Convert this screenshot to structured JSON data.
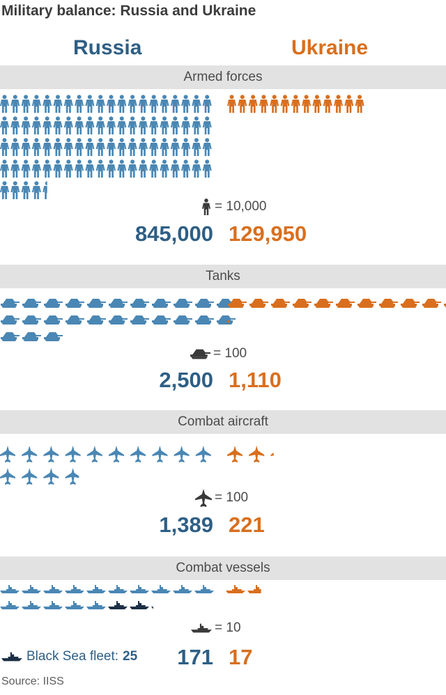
{
  "title": "Military balance: Russia and Ukraine",
  "countries": {
    "russia": "Russia",
    "ukraine": "Ukraine"
  },
  "colors": {
    "russia": "#4a87b4",
    "russia_dark": "#2e5f85",
    "black_sea": "#1d2f45",
    "ukraine": "#d96f1e",
    "legend_icon": "#3a3a3a"
  },
  "chart_data": [
    {
      "type": "pictogram",
      "title": "Armed forces",
      "icon": "soldier-icon",
      "unit_label": "= 10,000",
      "units_per_icon": 10000,
      "series": [
        {
          "name": "Russia",
          "icons": 84.5,
          "value_label": "845,000"
        },
        {
          "name": "Ukraine",
          "icons": 13,
          "value_label": "129,950"
        }
      ]
    },
    {
      "type": "pictogram",
      "title": "Tanks",
      "icon": "tank-icon",
      "unit_label": "= 100",
      "units_per_icon": 100,
      "series": [
        {
          "name": "Russia",
          "icons": 25,
          "value_label": "2,500"
        },
        {
          "name": "Ukraine",
          "icons": 11.1,
          "value_label": "1,110"
        }
      ]
    },
    {
      "type": "pictogram",
      "title": "Combat aircraft",
      "icon": "jet-icon",
      "unit_label": "= 100",
      "units_per_icon": 100,
      "series": [
        {
          "name": "Russia",
          "icons": 13.9,
          "value_label": "1,389"
        },
        {
          "name": "Ukraine",
          "icons": 2.2,
          "value_label": "221"
        }
      ]
    },
    {
      "type": "pictogram",
      "title": "Combat vessels",
      "icon": "ship-icon",
      "unit_label": "= 10",
      "units_per_icon": 10,
      "series": [
        {
          "name": "Russia",
          "icons": 17.1,
          "highlight_icons": 2.5,
          "value_label": "171"
        },
        {
          "name": "Ukraine",
          "icons": 1.7,
          "value_label": "17"
        }
      ]
    }
  ],
  "fleet_note": {
    "label": "Black Sea fleet:",
    "value": "25"
  },
  "source": "Source: IISS"
}
